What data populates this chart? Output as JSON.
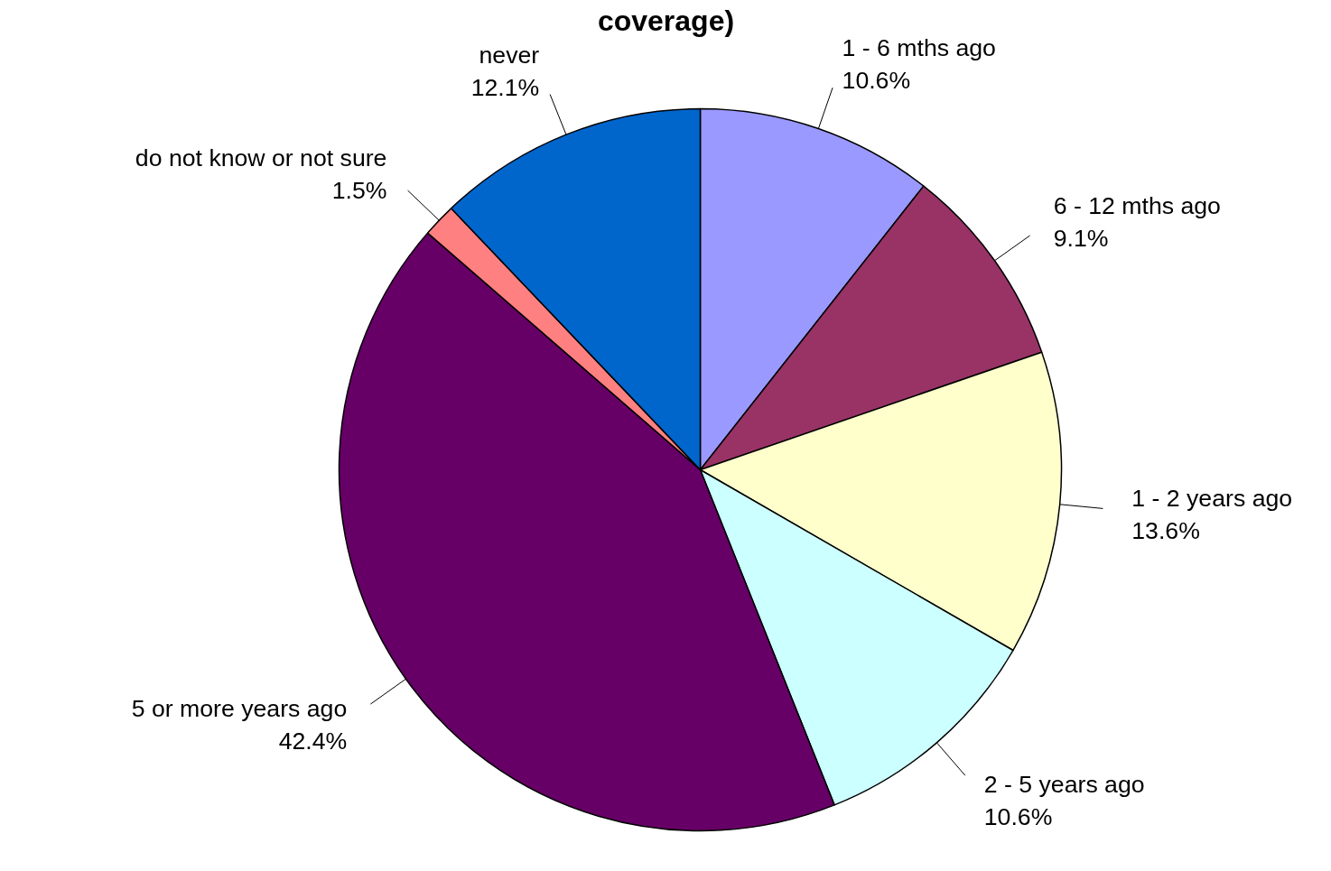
{
  "chart_data": {
    "type": "pie",
    "title": "coverage)",
    "categories": [
      "1 - 6 mths ago",
      "6 - 12 mths ago",
      "1 - 2 years ago",
      "2 - 5 years ago",
      "5 or more years ago",
      "do not know or not sure",
      "never"
    ],
    "values": [
      10.6,
      9.1,
      13.6,
      10.6,
      42.4,
      1.5,
      12.1
    ],
    "value_labels": [
      "10.6%",
      "9.1%",
      "13.6%",
      "10.6%",
      "42.4%",
      "1.5%",
      "12.1%"
    ],
    "colors": [
      "#9999ff",
      "#993366",
      "#ffffcc",
      "#ccffff",
      "#660066",
      "#ff8080",
      "#0066cc"
    ]
  }
}
